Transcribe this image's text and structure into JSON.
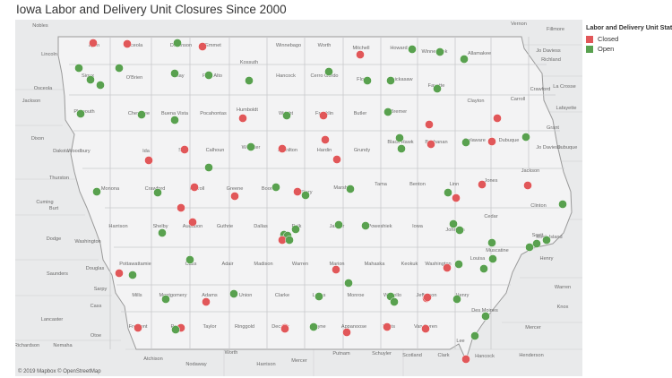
{
  "title": "Iowa Labor and Delivery Unit Closures Since 2000",
  "legend": {
    "title": "Labor and Delivery Unit Status",
    "items": [
      {
        "label": "Closed",
        "color": "#e15759"
      },
      {
        "label": "Open",
        "color": "#59a14f"
      }
    ]
  },
  "attribution": "© 2019 Mapbox © OpenStreetMap",
  "colors": {
    "closed": "#e15759",
    "open": "#59a14f",
    "iowa_fill": "#f3f3f4",
    "outside_fill": "#e9eaeb",
    "county_line": "#c9cacc",
    "label": "#6b6b6b"
  },
  "counties": [
    "Lyon",
    "Osceola",
    "Dickinson",
    "Emmet",
    "Winnebago",
    "Worth",
    "Mitchell",
    "Howard",
    "Winneshiek",
    "Allamakee",
    "Sioux",
    "O'Brien",
    "Clay",
    "Palo Alto",
    "Kossuth",
    "Hancock",
    "Cerro Gordo",
    "Floyd",
    "Chickasaw",
    "Fayette",
    "Clayton",
    "Plymouth",
    "Cherokee",
    "Buena Vista",
    "Pocahontas",
    "Humboldt",
    "Wright",
    "Franklin",
    "Butler",
    "Bremer",
    "Woodbury",
    "Ida",
    "Sac",
    "Calhoun",
    "Webster",
    "Hamilton",
    "Hardin",
    "Grundy",
    "Black Hawk",
    "Buchanan",
    "Delaware",
    "Dubuque",
    "Monona",
    "Crawford",
    "Carroll",
    "Greene",
    "Boone",
    "Story",
    "Marshall",
    "Tama",
    "Benton",
    "Linn",
    "Jones",
    "Jackson",
    "Harrison",
    "Shelby",
    "Audubon",
    "Guthrie",
    "Dallas",
    "Polk",
    "Jasper",
    "Poweshiek",
    "Iowa",
    "Johnson",
    "Cedar",
    "Clinton",
    "Scott",
    "Muscatine",
    "Pottawattamie",
    "Cass",
    "Adair",
    "Madison",
    "Warren",
    "Marion",
    "Mahaska",
    "Keokuk",
    "Washington",
    "Louisa",
    "Mills",
    "Montgomery",
    "Adams",
    "Union",
    "Clarke",
    "Lucas",
    "Monroe",
    "Wapello",
    "Jefferson",
    "Henry",
    "Des Moines",
    "Fremont",
    "Page",
    "Taylor",
    "Ringgold",
    "Decatur",
    "Wayne",
    "Appanoose",
    "Davis",
    "Van Buren",
    "Lee",
    "Lincoln",
    "Nobles",
    "Jackson",
    "Osceola",
    "Dixon",
    "Dakota",
    "Thurston",
    "Burt",
    "Cuming",
    "Dodge",
    "Washington",
    "Saunders",
    "Douglas",
    "Sarpy",
    "Cass",
    "Otoe",
    "Lancaster",
    "Nemaha",
    "Richardson",
    "Atchison",
    "Nodaway",
    "Worth",
    "Harrison",
    "Mercer",
    "Putnam",
    "Schuyler",
    "Scotland",
    "Clark",
    "Hancock",
    "Henderson",
    "Mercer",
    "Rock Island",
    "Henry",
    "Jo Daviess",
    "Grant",
    "Crawford",
    "La Crosse",
    "Vernon",
    "Fillmore",
    "Richland",
    "Lafayette",
    "Carroll",
    "Jo Daviess",
    "Dubuque",
    "Knox",
    "Warren"
  ],
  "hospitals": [
    {
      "status": "closed"
    },
    {
      "status": "closed"
    },
    {
      "status": "open"
    },
    {
      "status": "closed"
    },
    {
      "status": "closed"
    },
    {
      "status": "open"
    },
    {
      "status": "open"
    },
    {
      "status": "open"
    },
    {
      "status": "open"
    },
    {
      "status": "open"
    },
    {
      "status": "open"
    },
    {
      "status": "open"
    },
    {
      "status": "open"
    },
    {
      "status": "open"
    },
    {
      "status": "open"
    },
    {
      "status": "open"
    },
    {
      "status": "open"
    },
    {
      "status": "open"
    },
    {
      "status": "open"
    },
    {
      "status": "open"
    },
    {
      "status": "closed"
    },
    {
      "status": "closed"
    },
    {
      "status": "open"
    },
    {
      "status": "open"
    },
    {
      "status": "open"
    },
    {
      "status": "open"
    },
    {
      "status": "closed"
    },
    {
      "status": "closed"
    },
    {
      "status": "closed"
    },
    {
      "status": "closed"
    },
    {
      "status": "closed"
    },
    {
      "status": "open"
    },
    {
      "status": "open"
    },
    {
      "status": "closed"
    },
    {
      "status": "open"
    },
    {
      "status": "closed"
    },
    {
      "status": "closed"
    },
    {
      "status": "closed"
    },
    {
      "status": "open"
    },
    {
      "status": "open"
    },
    {
      "status": "closed"
    },
    {
      "status": "open"
    },
    {
      "status": "open"
    },
    {
      "status": "open"
    },
    {
      "status": "closed"
    },
    {
      "status": "closed"
    },
    {
      "status": "open"
    },
    {
      "status": "closed"
    },
    {
      "status": "open"
    },
    {
      "status": "open"
    },
    {
      "status": "open"
    },
    {
      "status": "closed"
    },
    {
      "status": "open"
    },
    {
      "status": "closed"
    },
    {
      "status": "open"
    },
    {
      "status": "open"
    },
    {
      "status": "open"
    },
    {
      "status": "closed"
    },
    {
      "status": "open"
    },
    {
      "status": "open"
    },
    {
      "status": "closed"
    },
    {
      "status": "open"
    },
    {
      "status": "open"
    },
    {
      "status": "closed"
    },
    {
      "status": "open"
    },
    {
      "status": "open"
    },
    {
      "status": "open"
    },
    {
      "status": "open"
    },
    {
      "status": "open"
    },
    {
      "status": "open"
    },
    {
      "status": "open"
    },
    {
      "status": "closed"
    },
    {
      "status": "open"
    },
    {
      "status": "open"
    },
    {
      "status": "closed"
    },
    {
      "status": "open"
    },
    {
      "status": "open"
    },
    {
      "status": "open"
    },
    {
      "status": "closed"
    },
    {
      "status": "open"
    },
    {
      "status": "closed"
    },
    {
      "status": "open"
    },
    {
      "status": "open"
    },
    {
      "status": "closed"
    },
    {
      "status": "closed"
    },
    {
      "status": "open"
    },
    {
      "status": "open"
    },
    {
      "status": "open"
    },
    {
      "status": "closed"
    },
    {
      "status": "closed"
    },
    {
      "status": "closed"
    },
    {
      "status": "open"
    },
    {
      "status": "closed"
    },
    {
      "status": "closed"
    },
    {
      "status": "closed"
    },
    {
      "status": "open"
    },
    {
      "status": "open"
    },
    {
      "status": "closed"
    },
    {
      "status": "closed"
    },
    {
      "status": "open"
    }
  ]
}
